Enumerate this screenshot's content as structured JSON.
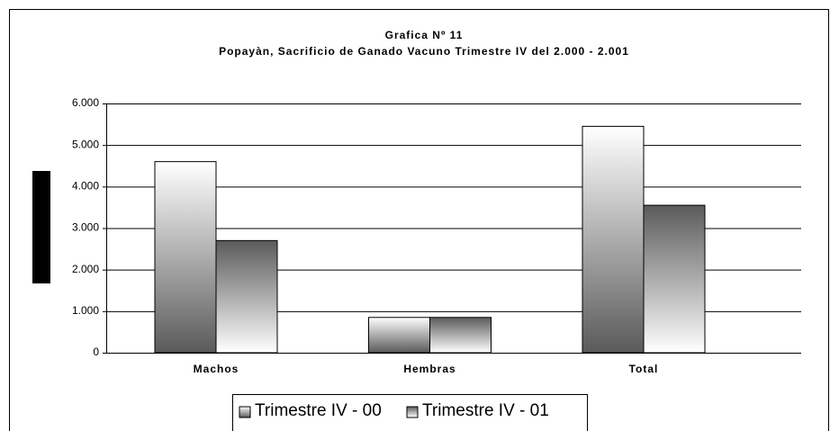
{
  "chart_data": {
    "type": "bar",
    "title": "Grafica Nº 11",
    "subtitle": "Popayàn, Sacrificio de Ganado Vacuno Trimestre IV del 2.000 - 2.001",
    "categories": [
      "Machos",
      "Hembras",
      "Total"
    ],
    "series": [
      {
        "name": "Trimestre IV - 00",
        "color": "#5a5a5a",
        "values": [
          4600,
          850,
          5450
        ]
      },
      {
        "name": "Trimestre IV - 01",
        "color": "#5a5a5a",
        "values": [
          2700,
          850,
          3550
        ]
      }
    ],
    "ylim": [
      0,
      6000
    ],
    "yticks": [
      0,
      {
        "value": 1000,
        "label": "1.000"
      },
      {
        "value": 2000,
        "label": "2.000"
      },
      {
        "value": 3000,
        "label": "3.000"
      },
      {
        "value": 4000,
        "label": "4.000"
      },
      {
        "value": 5000,
        "label": "5.000"
      },
      {
        "value": 6000,
        "label": "6.000"
      }
    ],
    "grid": true,
    "legend": "bottom"
  }
}
